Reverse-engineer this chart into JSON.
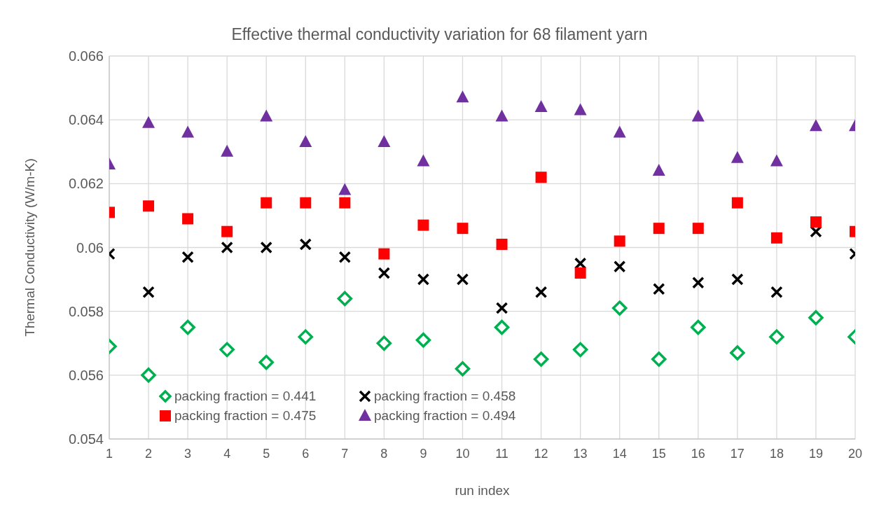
{
  "chart_data": {
    "type": "scatter",
    "title": "Effective thermal conductivity variation for 68 filament yarn",
    "xlabel": "run index",
    "ylabel": "Thermal Conductivity (W/m-K)",
    "x": [
      1,
      2,
      3,
      4,
      5,
      6,
      7,
      8,
      9,
      10,
      11,
      12,
      13,
      14,
      15,
      16,
      17,
      18,
      19,
      20
    ],
    "xlim": [
      1,
      20
    ],
    "xticks": [
      1,
      2,
      3,
      4,
      5,
      6,
      7,
      8,
      9,
      10,
      11,
      12,
      13,
      14,
      15,
      16,
      17,
      18,
      19,
      20
    ],
    "ylim": [
      0.054,
      0.066
    ],
    "yticks": [
      0.054,
      0.056,
      0.058,
      {
        "value": 0.06,
        "label": "0.06"
      },
      0.062,
      0.064,
      0.066
    ],
    "grid": true,
    "legend": "bottom left",
    "series": [
      {
        "name": "packing fraction = 0.441",
        "color": "#00b050",
        "marker": "diamond",
        "values": [
          0.0569,
          0.056,
          0.0575,
          0.0568,
          0.0564,
          0.0572,
          0.0584,
          0.057,
          0.0571,
          0.0562,
          0.0575,
          0.0565,
          0.0568,
          0.0581,
          0.0565,
          0.0575,
          0.0567,
          0.0572,
          0.0578,
          0.0572
        ]
      },
      {
        "name": "packing fraction = 0.458",
        "color": "#000000",
        "marker": "cross",
        "values": [
          0.0598,
          0.0586,
          0.0597,
          0.06,
          0.06,
          0.0601,
          0.0597,
          0.0592,
          0.059,
          0.059,
          0.0581,
          0.0586,
          0.0595,
          0.0594,
          0.0587,
          0.0589,
          0.059,
          0.0586,
          0.0605,
          0.0598
        ]
      },
      {
        "name": "packing fraction = 0.475",
        "color": "#ff0000",
        "marker": "square",
        "values": [
          0.0611,
          0.0613,
          0.0609,
          0.0605,
          0.0614,
          0.0614,
          0.0614,
          0.0598,
          0.0607,
          0.0606,
          0.0601,
          0.0622,
          0.0592,
          0.0602,
          0.0606,
          0.0606,
          0.0614,
          0.0603,
          0.0608,
          0.0605
        ]
      },
      {
        "name": "packing fraction = 0.494",
        "color": "#7030a0",
        "marker": "triangle",
        "values": [
          0.0626,
          0.0639,
          0.0636,
          0.063,
          0.0641,
          0.0633,
          0.0618,
          0.0633,
          0.0627,
          0.0647,
          0.0641,
          0.0644,
          0.0643,
          0.0636,
          0.0624,
          0.0641,
          0.0628,
          0.0627,
          0.0638,
          0.0638
        ]
      }
    ]
  }
}
